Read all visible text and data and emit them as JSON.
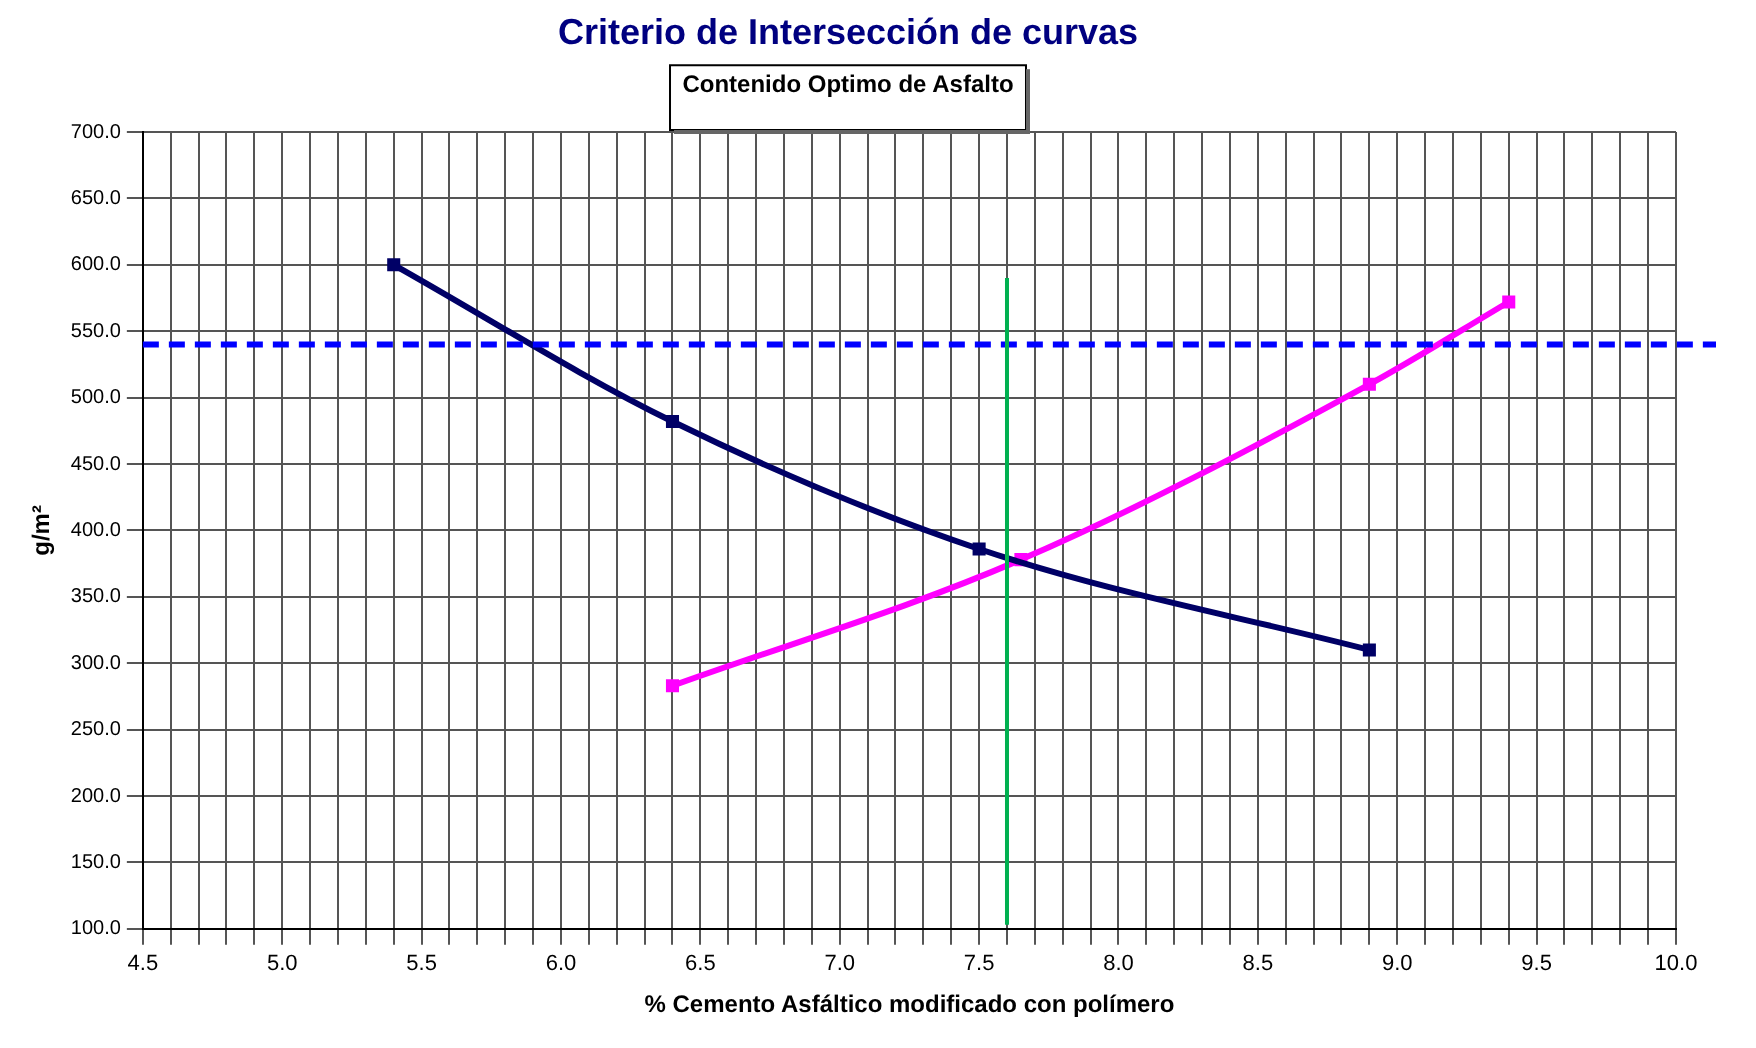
{
  "chart_data": {
    "type": "line",
    "title": "Criterio de Intersección de curvas",
    "subtitle": "Contenido Optimo de Asfalto",
    "xlabel": "% Cemento Asfáltico modificado con polímero",
    "ylabel": "g/m²",
    "xlim": [
      4.5,
      10.0
    ],
    "xticks": [
      {
        "value": 4.5,
        "label": "4.5"
      },
      {
        "value": 4.6,
        "label": null
      },
      {
        "value": 4.7,
        "label": null
      },
      {
        "value": 4.8,
        "label": null
      },
      {
        "value": 4.9,
        "label": null
      },
      {
        "value": 5.0,
        "label": "5.0"
      },
      {
        "value": 5.1,
        "label": null
      },
      {
        "value": 5.2,
        "label": null
      },
      {
        "value": 5.3,
        "label": null
      },
      {
        "value": 5.4,
        "label": null
      },
      {
        "value": 5.5,
        "label": "5.5"
      },
      {
        "value": 5.6,
        "label": null
      },
      {
        "value": 5.7,
        "label": null
      },
      {
        "value": 5.8,
        "label": null
      },
      {
        "value": 5.9,
        "label": null
      },
      {
        "value": 6.0,
        "label": "6.0"
      },
      {
        "value": 6.1,
        "label": null
      },
      {
        "value": 6.2,
        "label": null
      },
      {
        "value": 6.3,
        "label": null
      },
      {
        "value": 6.4,
        "label": null
      },
      {
        "value": 6.5,
        "label": "6.5"
      },
      {
        "value": 6.6,
        "label": null
      },
      {
        "value": 6.7,
        "label": null
      },
      {
        "value": 6.8,
        "label": null
      },
      {
        "value": 6.9,
        "label": null
      },
      {
        "value": 7.0,
        "label": "7.0"
      },
      {
        "value": 7.1,
        "label": null
      },
      {
        "value": 7.2,
        "label": null
      },
      {
        "value": 7.3,
        "label": null
      },
      {
        "value": 7.4,
        "label": null
      },
      {
        "value": 7.5,
        "label": "7.5"
      },
      {
        "value": 7.6,
        "label": null
      },
      {
        "value": 7.7,
        "label": null
      },
      {
        "value": 7.8,
        "label": null
      },
      {
        "value": 7.9,
        "label": null
      },
      {
        "value": 8.0,
        "label": "8.0"
      },
      {
        "value": 8.1,
        "label": null
      },
      {
        "value": 8.2,
        "label": null
      },
      {
        "value": 8.3,
        "label": null
      },
      {
        "value": 8.4,
        "label": null
      },
      {
        "value": 8.5,
        "label": "8.5"
      },
      {
        "value": 8.6,
        "label": null
      },
      {
        "value": 8.7,
        "label": null
      },
      {
        "value": 8.8,
        "label": null
      },
      {
        "value": 8.9,
        "label": null
      },
      {
        "value": 9.0,
        "label": "9.0"
      },
      {
        "value": 9.1,
        "label": null
      },
      {
        "value": 9.2,
        "label": null
      },
      {
        "value": 9.3,
        "label": null
      },
      {
        "value": 9.4,
        "label": null
      },
      {
        "value": 9.5,
        "label": "9.5"
      },
      {
        "value": 9.6,
        "label": null
      },
      {
        "value": 9.7,
        "label": null
      },
      {
        "value": 9.8,
        "label": null
      },
      {
        "value": 9.9,
        "label": null
      },
      {
        "value": 10.0,
        "label": "10.0"
      }
    ],
    "ylim": [
      100,
      700
    ],
    "yticks": [
      {
        "value": 100,
        "label": "100.0"
      },
      {
        "value": 150,
        "label": "150.0"
      },
      {
        "value": 200,
        "label": "200.0"
      },
      {
        "value": 250,
        "label": "250.0"
      },
      {
        "value": 300,
        "label": "300.0"
      },
      {
        "value": 350,
        "label": "350.0"
      },
      {
        "value": 400,
        "label": "400.0"
      },
      {
        "value": 450,
        "label": "450.0"
      },
      {
        "value": 500,
        "label": "500.0"
      },
      {
        "value": 550,
        "label": "550.0"
      },
      {
        "value": 600,
        "label": "600.0"
      },
      {
        "value": 650,
        "label": "650.0"
      },
      {
        "value": 700,
        "label": "700.0"
      }
    ],
    "grid": true,
    "legend": false,
    "marker": "square",
    "line_style": "solid",
    "series": [
      {
        "color": "#000066",
        "x": [
          5.4,
          6.4,
          7.5,
          8.9
        ],
        "values": [
          600,
          482,
          386,
          310
        ]
      },
      {
        "color": "#ff00ff",
        "x": [
          6.4,
          7.65,
          8.9,
          9.4
        ],
        "values": [
          283,
          378,
          510,
          572
        ]
      }
    ],
    "ref_lines": [
      {
        "axis": "y",
        "value": 540,
        "color": "#0000ff",
        "line_style": "dashed"
      },
      {
        "axis": "x",
        "value": 7.6,
        "color": "#00b050",
        "line_style": "solid"
      }
    ]
  }
}
